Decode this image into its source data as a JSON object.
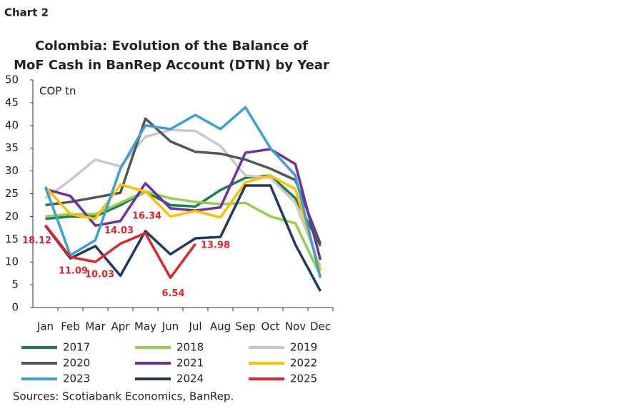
{
  "header": {
    "label": "Chart 2"
  },
  "chart_data": {
    "type": "line",
    "title": [
      "Colombia: Evolution of the Balance of",
      "MoF Cash in BanRep Account (DTN) by Year"
    ],
    "y_label": "COP tn",
    "categories": [
      "Jan",
      "Feb",
      "Mar",
      "Apr",
      "May",
      "Jun",
      "Jul",
      "Aug",
      "Sep",
      "Oct",
      "Nov",
      "Dec"
    ],
    "ylim": [
      0,
      50
    ],
    "yticks": [
      0,
      5,
      10,
      15,
      20,
      25,
      30,
      35,
      40,
      45,
      50
    ],
    "grid": false,
    "series": [
      {
        "name": "2017",
        "color": "#1a7f4b",
        "values": [
          19.5,
          20,
          20,
          22.5,
          25.5,
          22.5,
          22.2,
          25.8,
          28.5,
          29,
          24,
          13.5
        ]
      },
      {
        "name": "2018",
        "color": "#92d050",
        "values": [
          20,
          20.5,
          20.5,
          23,
          25.5,
          24,
          23.2,
          22.7,
          23,
          20,
          18.5,
          7
        ]
      },
      {
        "name": "2019",
        "color": "#c8c8c8",
        "values": [
          24,
          28,
          32.5,
          31,
          37.5,
          39,
          38.8,
          35.5,
          29,
          28.5,
          23,
          9
        ]
      },
      {
        "name": "2020",
        "color": "#555555",
        "values": [
          22.5,
          23.2,
          24.2,
          25.2,
          41.5,
          36.5,
          34.2,
          33.8,
          32.5,
          30.5,
          28,
          14
        ]
      },
      {
        "name": "2021",
        "color": "#7030a0",
        "values": [
          26,
          24.5,
          18,
          19,
          27.3,
          21.8,
          21.3,
          22,
          34,
          34.8,
          31.5,
          10.5
        ]
      },
      {
        "name": "2022",
        "color": "#ffc000",
        "values": [
          26.5,
          20.5,
          19.5,
          27,
          25.5,
          20,
          21.2,
          19.8,
          27.5,
          29,
          26,
          8
        ]
      },
      {
        "name": "2023",
        "color": "#3aa0d8",
        "values": [
          26.5,
          11.5,
          14.8,
          30.5,
          40,
          39.2,
          42.3,
          39.2,
          44,
          35,
          29,
          6.5
        ]
      },
      {
        "name": "2024",
        "color": "#1f3864",
        "values": [
          18,
          10.8,
          13.5,
          7,
          16.8,
          11.7,
          15.2,
          15.5,
          26.8,
          26.8,
          13.8,
          3.6
        ]
      },
      {
        "name": "2025",
        "color": "#e3242b",
        "values": [
          18.12,
          11.09,
          10.03,
          14.03,
          16.34,
          6.54,
          13.98,
          null,
          null,
          null,
          null,
          null
        ],
        "data_labels": true
      }
    ],
    "source": "Sources: Scotiabank Economics, BanRep."
  }
}
